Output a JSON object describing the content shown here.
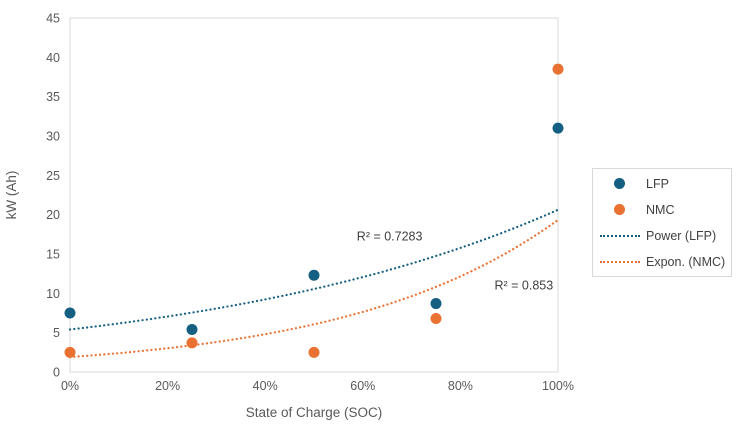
{
  "chart_data": {
    "type": "scatter",
    "title": "",
    "xlabel": "State of Charge (SOC)",
    "ylabel": "kW (Ah)",
    "xlim": [
      0,
      100
    ],
    "ylim": [
      0,
      45
    ],
    "grid": false,
    "x_ticks": [
      {
        "value": 0,
        "label": "0%"
      },
      {
        "value": 20,
        "label": "20%"
      },
      {
        "value": 40,
        "label": "40%"
      },
      {
        "value": 60,
        "label": "60%"
      },
      {
        "value": 80,
        "label": "80%"
      },
      {
        "value": 100,
        "label": "100%"
      }
    ],
    "y_ticks": [
      {
        "value": 0,
        "label": "0"
      },
      {
        "value": 5,
        "label": "5"
      },
      {
        "value": 10,
        "label": "10"
      },
      {
        "value": 15,
        "label": "15"
      },
      {
        "value": 20,
        "label": "20"
      },
      {
        "value": 25,
        "label": "25"
      },
      {
        "value": 30,
        "label": "30"
      },
      {
        "value": 35,
        "label": "35"
      },
      {
        "value": 40,
        "label": "40"
      },
      {
        "value": 45,
        "label": "45"
      }
    ],
    "series": [
      {
        "name": "LFP",
        "color": "#156082",
        "marker": "dot",
        "x": [
          0,
          25,
          50,
          75,
          100
        ],
        "values": [
          7.5,
          5.4,
          12.3,
          8.7,
          31
        ]
      },
      {
        "name": "NMC",
        "color": "#E97132",
        "marker": "dot",
        "x": [
          0,
          25,
          50,
          75,
          100
        ],
        "values": [
          2.5,
          3.7,
          2.5,
          6.8,
          38.5
        ]
      }
    ],
    "trendlines": [
      {
        "name": "Power (LFP)",
        "color": "#156082",
        "style": "dotted",
        "model": "exponential-approx",
        "a": 5.4,
        "b": 0.0134,
        "start_y": 5.4,
        "end_y": 20.6,
        "r_squared_label": "R² = 0.7283",
        "label_at": [
          65.5,
          17.2
        ]
      },
      {
        "name": "Expon. (NMC)",
        "color": "#E97132",
        "style": "dotted",
        "model": "exponential-approx",
        "a": 1.9,
        "b": 0.0232,
        "start_y": 1.9,
        "end_y": 19.3,
        "r_squared_label": "R² = 0.853",
        "label_at": [
          93,
          11
        ]
      }
    ],
    "legend_position": "right"
  },
  "legend": {
    "items": [
      {
        "label": "LFP",
        "marker": "dot",
        "color": "#156082"
      },
      {
        "label": "NMC",
        "marker": "dot",
        "color": "#E97132"
      },
      {
        "label": "Power (LFP)",
        "marker": "dotted-line",
        "color": "#156082"
      },
      {
        "label": "Expon. (NMC)",
        "marker": "dotted-line",
        "color": "#E97132"
      }
    ]
  },
  "colors": {
    "lfp": "#156082",
    "nmc": "#E97132",
    "axis_line": "#D9D9D9",
    "tick_text": "#595959",
    "annotation_text": "#404040",
    "background": "#FFFFFF"
  }
}
